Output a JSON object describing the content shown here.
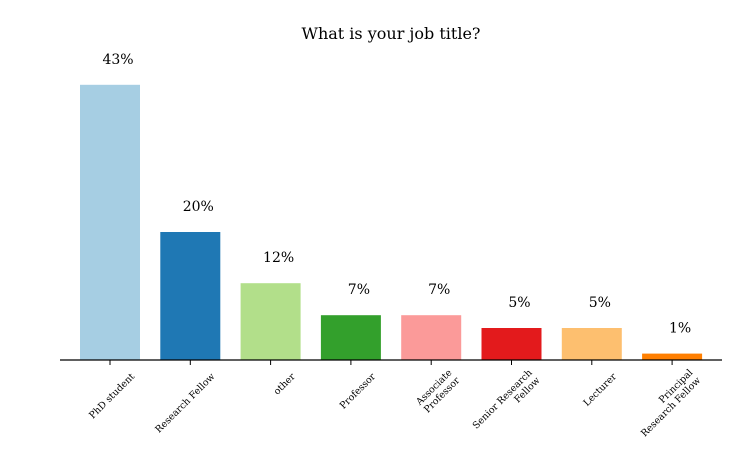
{
  "chart_data": {
    "type": "bar",
    "title": "What is your job title?",
    "xlabel": "",
    "ylabel": "",
    "ylim": [
      0,
      50
    ],
    "grid": false,
    "categories": [
      [
        "PhD student"
      ],
      [
        "Research Fellow"
      ],
      [
        "other"
      ],
      [
        "Professor"
      ],
      [
        "Associate",
        "Professor"
      ],
      [
        "Senior Research",
        "Fellow"
      ],
      [
        "Lecturer"
      ],
      [
        "Principal",
        "Research Fellow"
      ]
    ],
    "values": [
      43,
      20,
      12,
      7,
      7,
      5,
      5,
      1
    ],
    "value_labels": [
      "43%",
      "20%",
      "12%",
      "7%",
      "7%",
      "5%",
      "5%",
      "1%"
    ],
    "colors": [
      "#a6cee3",
      "#1f78b4",
      "#b2df8a",
      "#33a02c",
      "#fb9a99",
      "#e31a1c",
      "#fdbf6f",
      "#ff7f00"
    ]
  }
}
